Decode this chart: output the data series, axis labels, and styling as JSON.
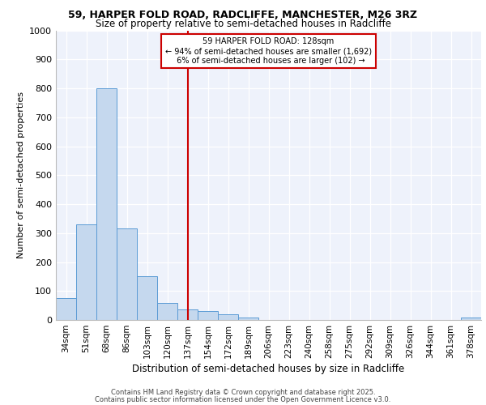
{
  "title1": "59, HARPER FOLD ROAD, RADCLIFFE, MANCHESTER, M26 3RZ",
  "title2": "Size of property relative to semi-detached houses in Radcliffe",
  "xlabel": "Distribution of semi-detached houses by size in Radcliffe",
  "ylabel": "Number of semi-detached properties",
  "categories": [
    "34sqm",
    "51sqm",
    "68sqm",
    "86sqm",
    "103sqm",
    "120sqm",
    "137sqm",
    "154sqm",
    "172sqm",
    "189sqm",
    "206sqm",
    "223sqm",
    "240sqm",
    "258sqm",
    "275sqm",
    "292sqm",
    "309sqm",
    "326sqm",
    "344sqm",
    "361sqm",
    "378sqm"
  ],
  "values": [
    75,
    330,
    800,
    315,
    150,
    60,
    35,
    30,
    20,
    8,
    0,
    0,
    0,
    0,
    0,
    0,
    0,
    0,
    0,
    0,
    8
  ],
  "bar_color": "#c5d8ee",
  "bar_edge_color": "#5b9bd5",
  "property_line_x": 6.0,
  "property_label": "59 HARPER FOLD ROAD: 128sqm",
  "pct_smaller": "94% of semi-detached houses are smaller (1,692)",
  "pct_larger": "6% of semi-detached houses are larger (102)",
  "line_color": "#cc0000",
  "annotation_box_edge": "#cc0000",
  "ylim": [
    0,
    1000
  ],
  "yticks": [
    0,
    100,
    200,
    300,
    400,
    500,
    600,
    700,
    800,
    900,
    1000
  ],
  "background_color": "#eef2fb",
  "footer1": "Contains HM Land Registry data © Crown copyright and database right 2025.",
  "footer2": "Contains public sector information licensed under the Open Government Licence v3.0."
}
